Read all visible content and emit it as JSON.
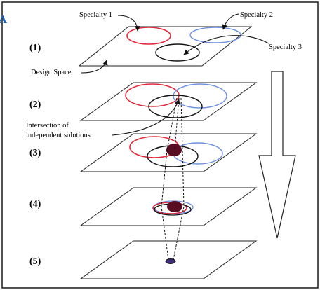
{
  "diagram": {
    "corner_mark": "A",
    "labels": {
      "specialty_1": "Specialty 1",
      "specialty_2": "Specialty 2",
      "specialty_3": "Specialty 3",
      "design_space": "Design Space",
      "intersection_line1": "Intersection of",
      "intersection_line2": "independent solutions"
    },
    "steps": [
      "(1)",
      "(2)",
      "(3)",
      "(4)",
      "(5)"
    ],
    "colors": {
      "specialty_1": "#e0283a",
      "specialty_2": "#6d8fe0",
      "specialty_3": "#111111",
      "solution": "#5a0d22",
      "final_solution": "#3f2a7a",
      "border": "#1a1a1a",
      "corner_mark": "#1f5fb5"
    }
  }
}
